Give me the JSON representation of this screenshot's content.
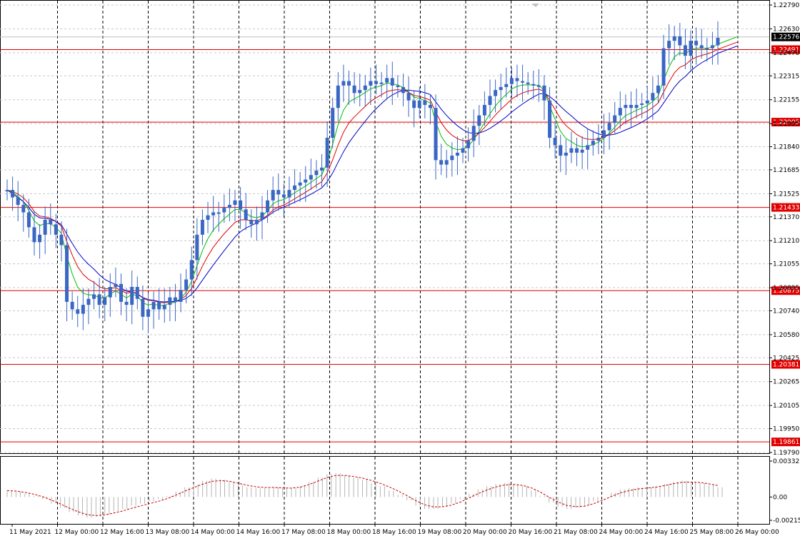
{
  "chart_data": [
    {
      "type": "line",
      "panel": "price",
      "style": "candlestick",
      "grid": true,
      "grid_style": "dashed",
      "ylim": [
        1.1979,
        1.2279
      ],
      "y_ticks": [
        "1.22790",
        "1.22630",
        "1.22470",
        "1.22315",
        "1.22155",
        "1.21995",
        "1.21840",
        "1.21685",
        "1.21525",
        "1.21370",
        "1.21210",
        "1.21055",
        "1.20895",
        "1.20740",
        "1.20580",
        "1.20425",
        "1.20265",
        "1.20105",
        "1.19950",
        "1.19790"
      ],
      "x_ticks": [
        "11 May 2021",
        "12 May 00:00",
        "12 May 16:00",
        "13 May 08:00",
        "14 May 00:00",
        "14 May 16:00",
        "17 May 08:00",
        "18 May 00:00",
        "18 May 16:00",
        "19 May 08:00",
        "20 May 00:00",
        "20 May 16:00",
        "21 May 08:00",
        "24 May 00:00",
        "24 May 16:00",
        "25 May 08:00",
        "26 May 00:00"
      ],
      "current_price": "1.22576",
      "horizontal_levels": [
        {
          "label": "1.22491",
          "value": 1.22491
        },
        {
          "label": "1.22005",
          "value": 1.22005
        },
        {
          "label": "1.21433",
          "value": 1.21433
        },
        {
          "label": "1.20875",
          "value": 1.20875
        },
        {
          "label": "1.20381",
          "value": 1.20381
        },
        {
          "label": "1.19861",
          "value": 1.19861
        }
      ],
      "series": [
        {
          "role": "price",
          "color": "#3a66c4",
          "values": [
            1.2155,
            1.215,
            1.2145,
            1.214,
            1.213,
            1.212,
            1.2125,
            1.2135,
            1.2132,
            1.2125,
            1.2118,
            1.208,
            1.2075,
            1.2072,
            1.2078,
            1.2082,
            1.2085,
            1.2078,
            1.2083,
            1.209,
            1.2092,
            1.208,
            1.2078,
            1.209,
            1.2082,
            1.207,
            1.2075,
            1.208,
            1.2075,
            1.2078,
            1.2083,
            1.208,
            1.2088,
            1.2095,
            1.2108,
            1.2125,
            1.2135,
            1.2138,
            1.214,
            1.214,
            1.2143,
            1.2145,
            1.2148,
            1.2142,
            1.2135,
            1.2132,
            1.2135,
            1.214,
            1.2148,
            1.2155,
            1.2152,
            1.215,
            1.2155,
            1.2158,
            1.216,
            1.2162,
            1.2165,
            1.2168,
            1.217,
            1.219,
            1.221,
            1.2225,
            1.2228,
            1.2225,
            1.222,
            1.2222,
            1.2225,
            1.2228,
            1.2226,
            1.2227,
            1.223,
            1.2225,
            1.2224,
            1.222,
            1.2215,
            1.221,
            1.2215,
            1.2212,
            1.221,
            1.2175,
            1.2172,
            1.2175,
            1.2178,
            1.218,
            1.2183,
            1.2188,
            1.2198,
            1.2205,
            1.2212,
            1.2218,
            1.2222,
            1.2224,
            1.2226,
            1.223,
            1.2228,
            1.2227,
            1.2226,
            1.2225,
            1.2225,
            1.2215,
            1.219,
            1.2185,
            1.2178,
            1.218,
            1.2183,
            1.218,
            1.2182,
            1.2185,
            1.2188,
            1.219,
            1.2195,
            1.22,
            1.2205,
            1.221,
            1.2212,
            1.221,
            1.2212,
            1.2213,
            1.2215,
            1.222,
            1.2225,
            1.225,
            1.2255,
            1.2258,
            1.2252,
            1.2245,
            1.2255,
            1.2252,
            1.225,
            1.225,
            1.2252,
            1.2257
          ]
        },
        {
          "role": "ma-fast",
          "color": "#00c000"
        },
        {
          "role": "ma-mid",
          "color": "#e00000"
        },
        {
          "role": "ma-slow",
          "color": "#0000c8"
        }
      ]
    },
    {
      "type": "bar",
      "panel": "oscillator",
      "ylim": [
        -0.00215,
        0.00332
      ],
      "y_ticks": [
        "0.00332",
        "0.00",
        "-0.00215"
      ],
      "bar_color": "#b4b4b4",
      "signal_color": "#c00000",
      "values": [
        0.0006,
        0.0005,
        0.0003,
        0.0001,
        -0.0002,
        -0.0006,
        -0.001,
        -0.0014,
        -0.0017,
        -0.0019,
        -0.0018,
        -0.0016,
        -0.0013,
        -0.0011,
        -0.0008,
        -0.0006,
        -0.0004,
        -0.0002,
        0.0001,
        0.0005,
        0.0009,
        0.0012,
        0.0015,
        0.0017,
        0.0016,
        0.0014,
        0.0011,
        0.0009,
        0.0008,
        0.0008,
        0.0009,
        0.0008,
        0.0008,
        0.001,
        0.0014,
        0.0018,
        0.0021,
        0.0022,
        0.002,
        0.0018,
        0.0016,
        0.0013,
        0.001,
        0.0006,
        0.0002,
        -0.0003,
        -0.0008,
        -0.0011,
        -0.0011,
        -0.0009,
        -0.0006,
        -0.0002,
        0.0003,
        0.0007,
        0.001,
        0.0012,
        0.0013,
        0.0012,
        0.001,
        0.0006,
        0.0001,
        -0.0005,
        -0.0009,
        -0.0011,
        -0.001,
        -0.0008,
        -0.0004,
        0.0,
        0.0004,
        0.0007,
        0.0008,
        0.0009,
        0.0009,
        0.001,
        0.0012,
        0.0014,
        0.0015,
        0.0014,
        0.0013,
        0.0011,
        0.0009
      ]
    }
  ]
}
